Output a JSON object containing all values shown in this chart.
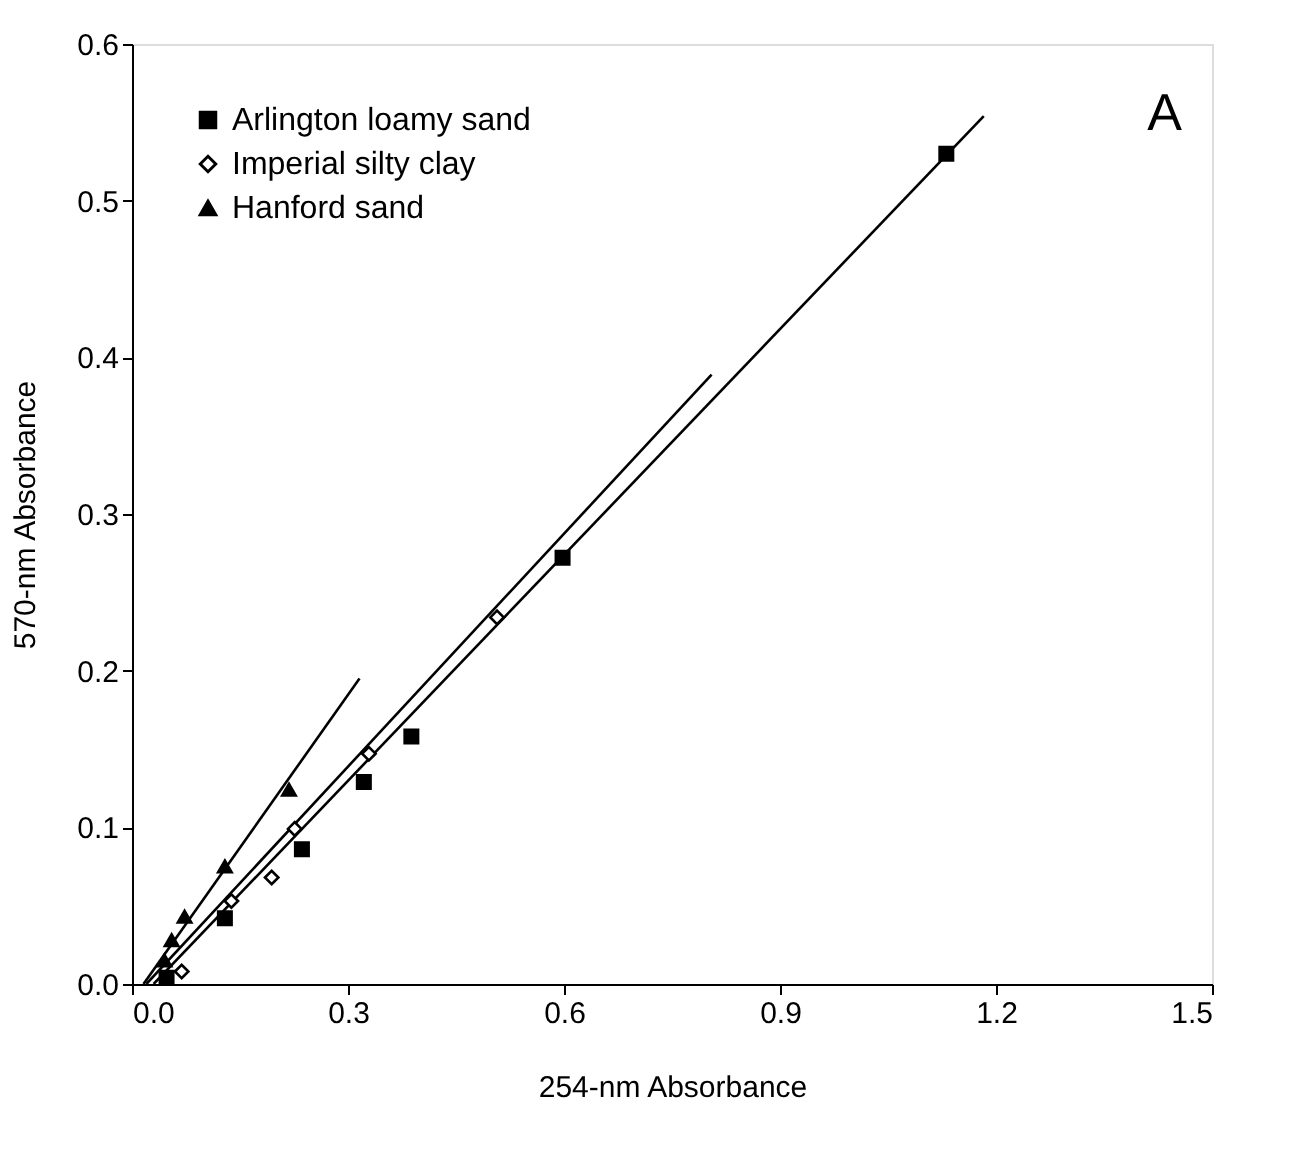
{
  "chart_data": {
    "type": "scatter",
    "xlabel": "254-nm Absorbance",
    "ylabel": "570-nm Absorbance",
    "xlim": [
      0,
      1.5
    ],
    "ylim": [
      0,
      0.6
    ],
    "xticks": [
      {
        "value": 0,
        "label": "0.0"
      },
      0.3,
      0.6,
      0.9,
      1.2,
      1.5
    ],
    "yticks": [
      {
        "value": 0,
        "label": "0.0"
      },
      0.1,
      0.2,
      0.3,
      0.4,
      0.5,
      0.6
    ],
    "grid": false,
    "legend": "top left",
    "annotations": [
      "A"
    ],
    "series": [
      {
        "name": "Arlington loamy sand",
        "color": "#000000",
        "marker": "square",
        "x": [
          1.131,
          0.598,
          0.388,
          0.322,
          0.236,
          0.129,
          0.048
        ],
        "values": [
          0.53,
          0.272,
          0.158,
          0.129,
          0.086,
          0.042,
          0.004
        ]
      },
      {
        "name": "Imperial silty clay",
        "color": "#000000",
        "marker": "diamond",
        "x": [
          0.507,
          0.329,
          0.226,
          0.194,
          0.138,
          0.069
        ],
        "values": [
          0.234,
          0.147,
          0.099,
          0.068,
          0.053,
          0.008
        ]
      },
      {
        "name": "Hanford sand",
        "color": "#000000",
        "marker": "triangle",
        "x": [
          0.218,
          0.129,
          0.073,
          0.055,
          0.045
        ],
        "values": [
          0.124,
          0.075,
          0.043,
          0.028,
          0.015
        ]
      },
      {
        "type": "line",
        "color": "#000000",
        "x": [
          0.03,
          1.183
        ],
        "values": [
          0,
          0.554
        ]
      },
      {
        "type": "line",
        "color": "#000000",
        "x": [
          0.02,
          0.805
        ],
        "values": [
          0,
          0.389
        ]
      },
      {
        "type": "line",
        "color": "#000000",
        "x": [
          0.016,
          0.316
        ],
        "values": [
          0,
          0.195
        ]
      }
    ]
  }
}
